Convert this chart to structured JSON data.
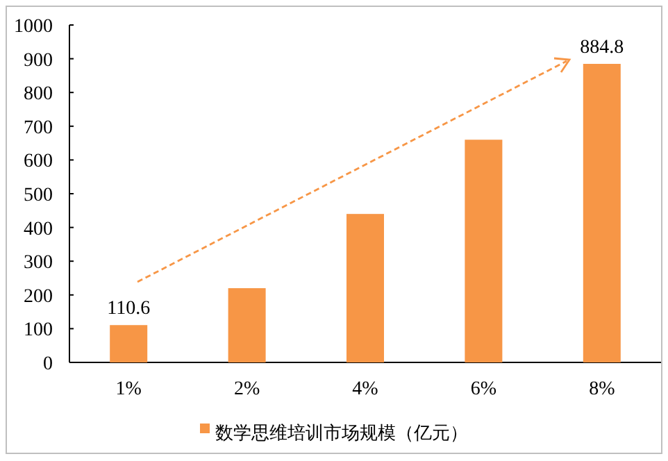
{
  "chart_data": {
    "type": "bar",
    "categories": [
      "1%",
      "2%",
      "4%",
      "6%",
      "8%"
    ],
    "series": [
      {
        "name": "数学思维培训市场规模（亿元）",
        "color": "#f79646",
        "values": [
          110.6,
          220,
          440,
          660,
          884.8
        ],
        "value_labels": [
          "110.6",
          null,
          null,
          null,
          "884.8"
        ]
      }
    ],
    "ylim": [
      0,
      1000
    ],
    "yticks": [
      0,
      100,
      200,
      300,
      400,
      500,
      600,
      700,
      800,
      900,
      1000
    ],
    "legend": "bottom"
  }
}
